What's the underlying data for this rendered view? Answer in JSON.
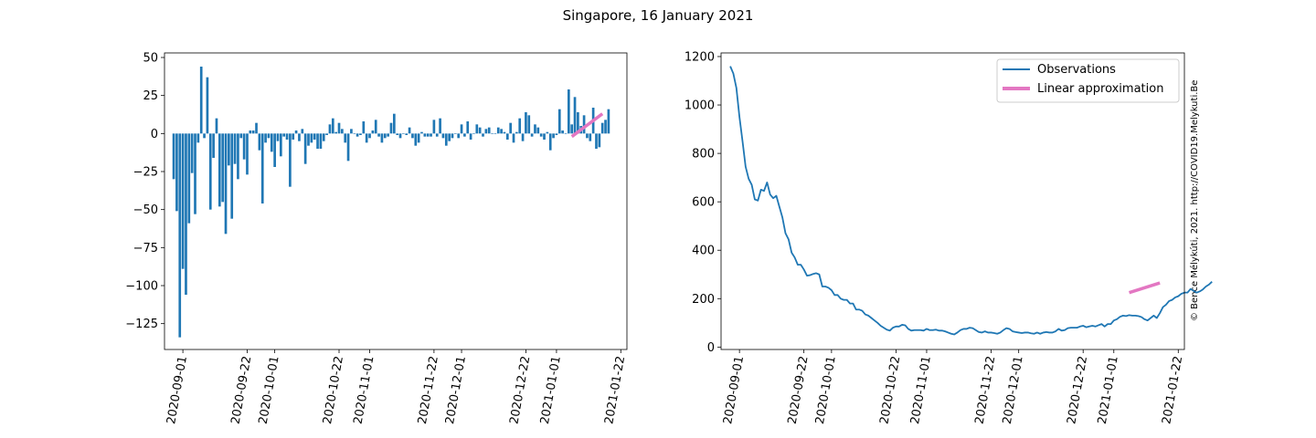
{
  "figure": {
    "title": "Singapore, 16 January 2021",
    "watermark": "© Bence Mélykúti, 2021. http://COVID19.Melykuti.Be"
  },
  "colors": {
    "bars": "#1f77b4",
    "line": "#1f77b4",
    "approx": "#e377c2",
    "watermark": "#c8c8c8"
  },
  "chart_data": [
    {
      "type": "bar",
      "title": "",
      "xlabel": "",
      "ylabel": "",
      "x_start": "2020-08-29",
      "x_ticks": [
        "2020-09-01",
        "2020-09-22",
        "2020-10-01",
        "2020-10-22",
        "2020-11-01",
        "2020-11-22",
        "2020-12-01",
        "2020-12-22",
        "2021-01-01",
        "2021-01-22"
      ],
      "y_ticks": [
        50,
        25,
        0,
        -25,
        -50,
        -75,
        -100,
        -125
      ],
      "ylim": [
        -142,
        53
      ],
      "xlim": [
        "2020-08-26",
        "2021-01-24"
      ],
      "values": [
        -30,
        -51,
        -134,
        -89,
        -106,
        -59,
        -26,
        -53,
        -6,
        44,
        -3,
        37,
        -50,
        -16,
        10,
        -48,
        -45,
        -66,
        -21,
        -56,
        -20,
        -30,
        -3,
        -17,
        -27,
        2,
        2,
        7,
        -11,
        -46,
        -6,
        -3,
        -12,
        -22,
        -5,
        -15,
        -2,
        -4,
        -35,
        -4,
        2,
        -5,
        3,
        -20,
        -8,
        -6,
        -4,
        -10,
        -10,
        -5,
        -1,
        6,
        10,
        1,
        7,
        3,
        -6,
        -18,
        3,
        0,
        -2,
        -1,
        8,
        -6,
        -3,
        2,
        9,
        -2,
        -6,
        -3,
        -2,
        7,
        13,
        -1,
        -3,
        0,
        -1,
        4,
        -3,
        -8,
        -6,
        1,
        -2,
        -2,
        -2,
        9,
        -2,
        10,
        -3,
        -8,
        -5,
        -3,
        0,
        -3,
        6,
        -2,
        8,
        -4,
        0,
        6,
        4,
        -2,
        3,
        4,
        0,
        0,
        4,
        3,
        1,
        -4,
        7,
        -6,
        1,
        10,
        -5,
        14,
        12,
        -2,
        6,
        4,
        -2,
        -4,
        1,
        -11,
        -3,
        -1,
        16,
        2,
        0,
        29,
        6,
        24,
        14,
        5,
        12,
        -3,
        -5,
        17,
        -10,
        -9,
        7,
        9,
        16
      ],
      "series": [
        {
          "name": "",
          "type": "line",
          "x": [
            "2021-01-06",
            "2021-01-16"
          ],
          "y": [
            -2,
            13
          ]
        }
      ]
    },
    {
      "type": "line",
      "title": "",
      "xlabel": "",
      "ylabel": "",
      "x_start": "2020-08-29",
      "x_ticks": [
        "2020-09-01",
        "2020-09-22",
        "2020-10-01",
        "2020-10-22",
        "2020-11-01",
        "2020-11-22",
        "2020-12-01",
        "2020-12-22",
        "2021-01-01",
        "2021-01-22"
      ],
      "y_ticks": [
        0,
        200,
        400,
        600,
        800,
        1000,
        1200
      ],
      "ylim": [
        -10,
        1215
      ],
      "xlim": [
        "2020-08-26",
        "2021-01-24"
      ],
      "legend_position": "upper right",
      "series": [
        {
          "name": "Observations",
          "values": [
            1160,
            1130,
            1070,
            950,
            850,
            745,
            695,
            670,
            610,
            605,
            650,
            645,
            680,
            630,
            615,
            625,
            580,
            535,
            470,
            445,
            390,
            370,
            340,
            340,
            320,
            295,
            297,
            302,
            305,
            300,
            250,
            250,
            245,
            235,
            215,
            215,
            200,
            195,
            195,
            180,
            180,
            155,
            155,
            150,
            135,
            130,
            120,
            110,
            100,
            88,
            80,
            72,
            68,
            80,
            85,
            85,
            92,
            90,
            75,
            68,
            70,
            70,
            70,
            68,
            75,
            70,
            70,
            72,
            68,
            68,
            65,
            60,
            55,
            52,
            60,
            70,
            75,
            75,
            80,
            78,
            70,
            62,
            60,
            65,
            60,
            60,
            58,
            55,
            60,
            70,
            78,
            75,
            65,
            62,
            60,
            58,
            60,
            60,
            57,
            55,
            60,
            55,
            60,
            62,
            60,
            60,
            65,
            75,
            68,
            70,
            78,
            80,
            80,
            80,
            85,
            88,
            82,
            85,
            88,
            85,
            90,
            95,
            85,
            95,
            95,
            110,
            115,
            125,
            130,
            128,
            132,
            130,
            130,
            128,
            124,
            115,
            110,
            120,
            130,
            120,
            140,
            165,
            175,
            190,
            195,
            205,
            210,
            220,
            225,
            225,
            240,
            232,
            225,
            230,
            238,
            250,
            258,
            270
          ]
        },
        {
          "name": "Linear approximation",
          "x": [
            "2021-01-06",
            "2021-01-16"
          ],
          "y": [
            225,
            265
          ]
        }
      ]
    }
  ]
}
